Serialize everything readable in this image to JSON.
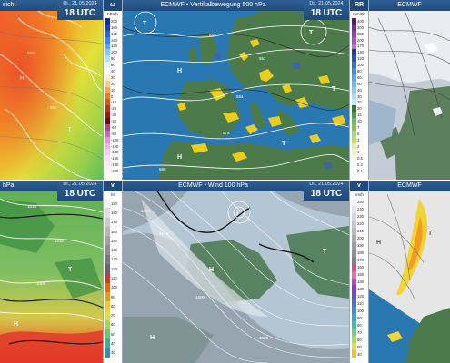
{
  "panels": {
    "top_left": {
      "title": "sicht",
      "date": "Di., 21.05.2024",
      "time": "18 UTC"
    },
    "top_mid": {
      "title": "ECMWF • Vertikalbewegung 500 hPa",
      "date": "Di., 21.05.2024",
      "time": "18 UTC"
    },
    "top_right": {
      "title": "ECMWF"
    },
    "bottom_left": {
      "title": "hPa",
      "date": "Di., 21.05.2024",
      "time": "18 UTC"
    },
    "bottom_mid": {
      "title": "ECMWF • Wind 100 hPa",
      "date": "Di., 21.05.2024",
      "time": "18 UTC"
    },
    "bottom_right": {
      "title": "ECMWF"
    }
  },
  "legends": {
    "omega": {
      "header": "ω",
      "unit": "hPa/h",
      "labels": [
        "200",
        "180",
        "160",
        "140",
        "120",
        "100",
        "80",
        "60",
        "40",
        "30",
        "20",
        "10",
        "0",
        "-10",
        "-20",
        "-30",
        "-40",
        "-60",
        "-80",
        "-100",
        "-120",
        "-140",
        "-160",
        "-180",
        "-200"
      ]
    },
    "rr": {
      "header": "RR",
      "unit": "mm/6h",
      "labels": [
        "400",
        "300",
        "250",
        "200",
        "170",
        "140",
        "120",
        "100",
        "80",
        "60",
        "50",
        "40",
        "30",
        "25",
        "20",
        "15",
        "10",
        "7",
        "5",
        "3",
        "2",
        "1",
        "0.5",
        "0.2",
        "0.1"
      ]
    },
    "wind_kt": {
      "header": "v",
      "unit": "kt",
      "labels": [
        "190",
        "180",
        "170",
        "160",
        "150",
        "140",
        "130",
        "120",
        "110",
        "100",
        "90",
        "80",
        "70",
        "60",
        "50",
        "40",
        "30"
      ]
    },
    "wind_kmh": {
      "header": "v",
      "unit": "km/h",
      "labels": [
        "250",
        "240",
        "230",
        "220",
        "210",
        "200",
        "190",
        "180",
        "170",
        "160",
        "150",
        "140",
        "130",
        "120",
        "110",
        "100",
        "90",
        "80",
        "70",
        "60",
        "50",
        "40"
      ]
    }
  },
  "map_labels": {
    "top_mid": [
      "T",
      "H",
      "T",
      "H",
      "T",
      "588",
      "576",
      "564",
      "552",
      "540",
      "T"
    ],
    "bottom_mid": [
      "T",
      "H",
      "T",
      "1660",
      "1640",
      "1600",
      "1580",
      "H"
    ],
    "bottom_right": [
      "H",
      "T"
    ],
    "top_left": [
      "570",
      "564",
      "H",
      "T"
    ],
    "bottom_left": [
      "1015",
      "1010",
      "1005",
      "T",
      "H"
    ]
  },
  "colors": {
    "header_blue": "#1f4a7c",
    "sea_blue": "#2a78b2",
    "land_green": "#4d7a4a",
    "uplift_yellow": "#f4d21a",
    "wind_grey": "#8e9aa6"
  }
}
